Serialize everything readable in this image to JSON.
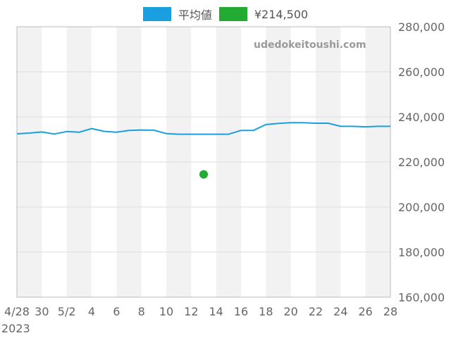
{
  "colors": {
    "average": "#1a9fe0",
    "sold": "#22aa33",
    "band": "#f2f2f2",
    "grid": "#dddddd"
  },
  "watermark": "udedokeitoushi.com",
  "chart_data": {
    "type": "line",
    "series": [
      {
        "name": "平均値",
        "type": "line",
        "x": [
          "2023-04-28",
          "2023-04-29",
          "2023-04-30",
          "2023-05-01",
          "2023-05-02",
          "2023-05-03",
          "2023-05-04",
          "2023-05-05",
          "2023-05-06",
          "2023-05-07",
          "2023-05-08",
          "2023-05-09",
          "2023-05-10",
          "2023-05-11",
          "2023-05-12",
          "2023-05-13",
          "2023-05-14",
          "2023-05-15",
          "2023-05-16",
          "2023-05-17",
          "2023-05-18",
          "2023-05-19",
          "2023-05-20",
          "2023-05-21",
          "2023-05-22",
          "2023-05-23",
          "2023-05-24",
          "2023-05-25",
          "2023-05-26",
          "2023-05-27",
          "2023-05-28"
        ],
        "values": [
          232500,
          232800,
          233300,
          232400,
          233500,
          233200,
          234800,
          233600,
          233200,
          234000,
          234200,
          234100,
          232600,
          232300,
          232300,
          232300,
          232300,
          232300,
          234000,
          234000,
          236600,
          237100,
          237400,
          237400,
          237200,
          237200,
          235800,
          235800,
          235600,
          235800,
          235800
        ]
      },
      {
        "name": "¥214,500",
        "type": "scatter",
        "x": [
          "2023-05-13"
        ],
        "values": [
          214500
        ]
      }
    ],
    "x_tick_labels": [
      "4/28",
      "30",
      "5/2",
      "4",
      "6",
      "8",
      "10",
      "12",
      "14",
      "16",
      "18",
      "20",
      "22",
      "24",
      "26",
      "28"
    ],
    "x_year_label": "2023",
    "y_tick_labels": [
      "280,000",
      "260,000",
      "240,000",
      "220,000",
      "200,000",
      "180,000",
      "160,000"
    ],
    "ylim": [
      160000,
      280000
    ],
    "xlim": [
      "2023-04-28",
      "2023-05-28"
    ],
    "legend_position": "top-center",
    "grid": true
  }
}
